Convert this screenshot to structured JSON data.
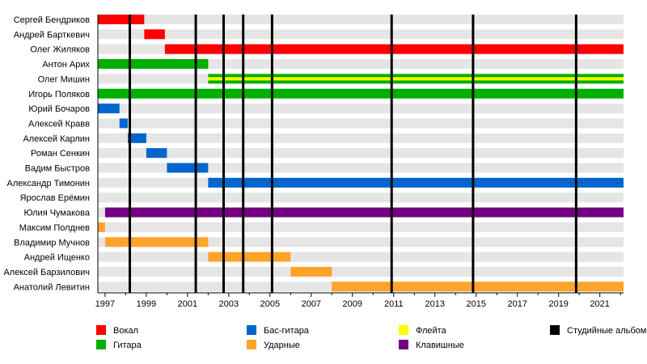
{
  "chart_data": {
    "type": "timeline",
    "xlim": [
      1996.65,
      2022.15
    ],
    "x_ticks": [
      1997,
      1999,
      2001,
      2003,
      2005,
      2007,
      2009,
      2011,
      2013,
      2015,
      2017,
      2019,
      2021
    ],
    "grid": false,
    "legend_position": "bottom",
    "colors": {
      "vocals": "#ff0000",
      "guitar": "#00b000",
      "bass": "#0066cc",
      "drums": "#ffa42a",
      "flute": "#ffff00",
      "keys": "#730080",
      "albums": "#000000",
      "row_bg": "#e5e5e5"
    },
    "legend": [
      {
        "key": "vocals",
        "label": "Вокал"
      },
      {
        "key": "guitar",
        "label": "Гитара"
      },
      {
        "key": "bass",
        "label": "Бас-гитара"
      },
      {
        "key": "drums",
        "label": "Ударные"
      },
      {
        "key": "flute",
        "label": "Флейта"
      },
      {
        "key": "keys",
        "label": "Клавишные"
      },
      {
        "key": "albums",
        "label": "Студийные альбомы"
      }
    ],
    "members": [
      {
        "name": "Сергей Бендриков",
        "periods": [
          {
            "role": "vocals",
            "start": 1996.65,
            "end": 1998.9
          }
        ]
      },
      {
        "name": "Андрей Барткевич",
        "periods": [
          {
            "role": "vocals",
            "start": 1998.9,
            "end": 1999.9
          }
        ]
      },
      {
        "name": "Олег Жиляков",
        "periods": [
          {
            "role": "vocals",
            "start": 1999.9,
            "end": 2022.15
          }
        ]
      },
      {
        "name": "Антон Арих",
        "periods": [
          {
            "role": "guitar",
            "start": 1996.65,
            "end": 2002.0
          }
        ]
      },
      {
        "name": "Олег Мишин",
        "periods": [
          {
            "role": "guitar",
            "start": 2002.0,
            "end": 2022.15,
            "secondary": "flute"
          }
        ]
      },
      {
        "name": "Игорь Поляков",
        "periods": [
          {
            "role": "guitar",
            "start": 1996.65,
            "end": 2022.15
          }
        ]
      },
      {
        "name": "Юрий Бочаров",
        "periods": [
          {
            "role": "bass",
            "start": 1996.65,
            "end": 1997.7
          }
        ]
      },
      {
        "name": "Алексей Кравв",
        "periods": [
          {
            "role": "bass",
            "start": 1997.7,
            "end": 1998.1
          }
        ]
      },
      {
        "name": "Алексей Карлин",
        "periods": [
          {
            "role": "bass",
            "start": 1998.1,
            "end": 1999.0
          }
        ]
      },
      {
        "name": "Роман Сенкин",
        "periods": [
          {
            "role": "bass",
            "start": 1999.0,
            "end": 2000.0
          }
        ]
      },
      {
        "name": "Вадим Быстров",
        "periods": [
          {
            "role": "bass",
            "start": 2000.0,
            "end": 2002.0
          }
        ]
      },
      {
        "name": "Александр Тимонин",
        "periods": [
          {
            "role": "bass",
            "start": 2002.0,
            "end": 2022.15
          }
        ]
      },
      {
        "name": "Ярослав Ерёмин",
        "periods": []
      },
      {
        "name": "Юлия Чумакова",
        "periods": [
          {
            "role": "keys",
            "start": 1997.0,
            "end": 2022.15
          }
        ]
      },
      {
        "name": "Максим Полднев",
        "periods": [
          {
            "role": "drums",
            "start": 1996.65,
            "end": 1997.0
          }
        ]
      },
      {
        "name": "Владимир Мучнов",
        "periods": [
          {
            "role": "drums",
            "start": 1997.0,
            "end": 2002.0
          }
        ]
      },
      {
        "name": "Андрей Ищенко",
        "periods": [
          {
            "role": "drums",
            "start": 2002.0,
            "end": 2006.0
          }
        ]
      },
      {
        "name": "Алексей Барзилович",
        "periods": [
          {
            "role": "drums",
            "start": 2006.0,
            "end": 2008.0
          }
        ]
      },
      {
        "name": "Анатолий Левитин",
        "periods": [
          {
            "role": "drums",
            "start": 2008.0,
            "end": 2022.15
          }
        ]
      }
    ],
    "albums": [
      1998.2,
      2001.4,
      2002.75,
      2003.7,
      2005.1,
      2010.9,
      2014.85,
      2019.85
    ]
  }
}
